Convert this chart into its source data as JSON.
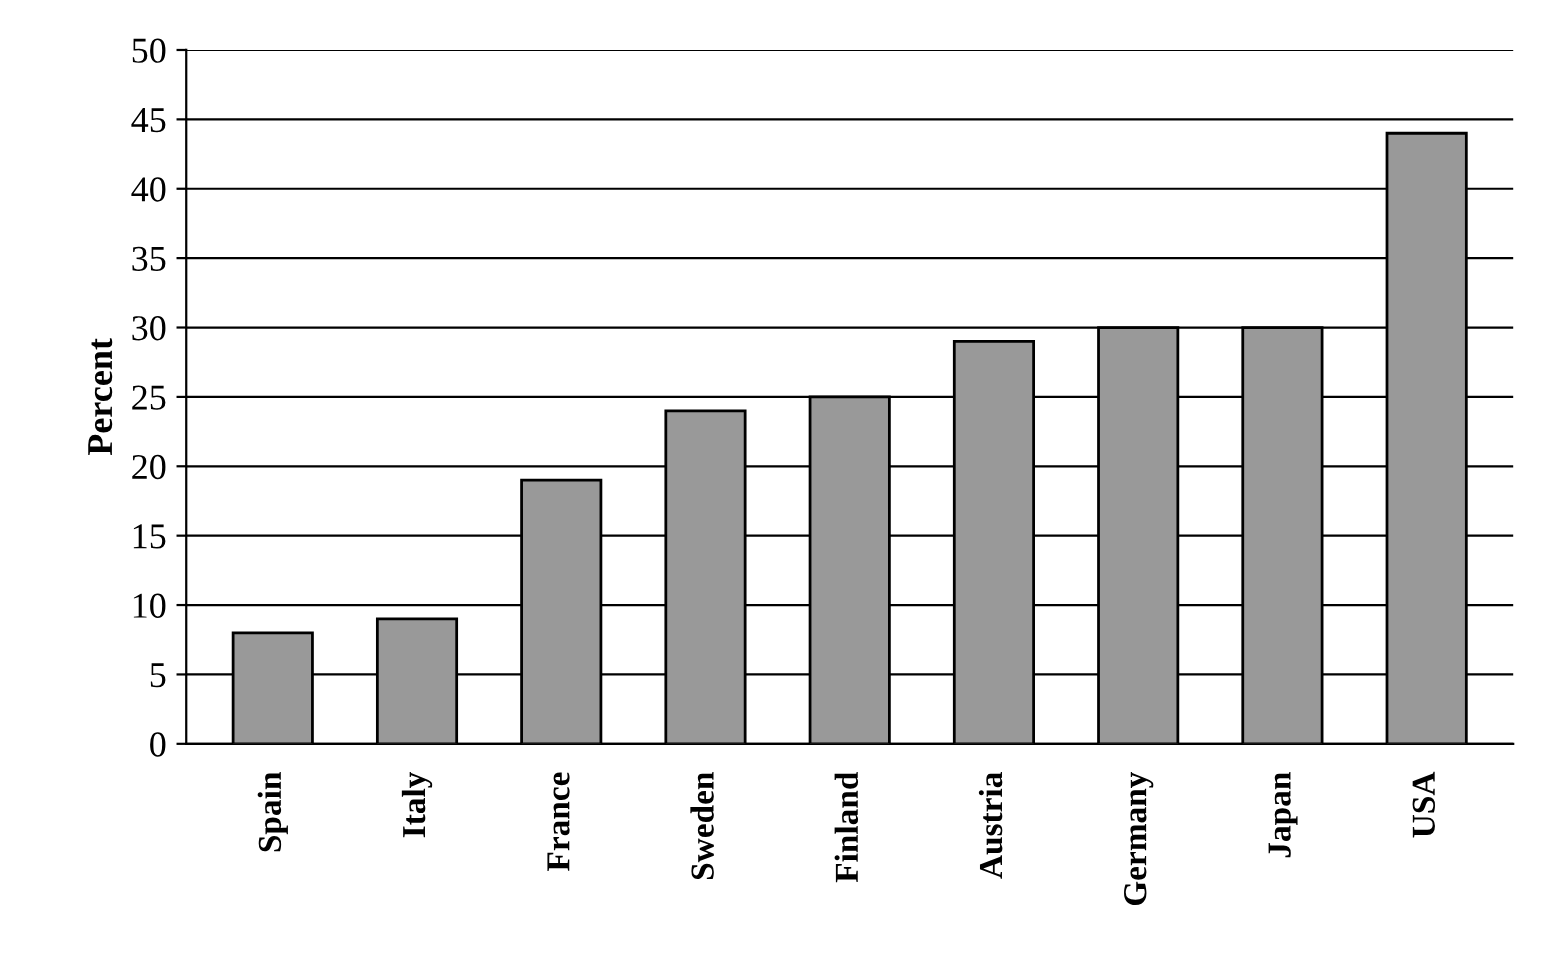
{
  "chart_data": {
    "type": "bar",
    "ylabel": "Percent",
    "categories": [
      "Spain",
      "Italy",
      "France",
      "Sweden",
      "Finland",
      "Austria",
      "Germany",
      "Japan",
      "USA"
    ],
    "values": [
      8,
      9,
      19,
      24,
      25,
      29,
      30,
      30,
      44
    ],
    "color": "#999999",
    "ylim": [
      0,
      50
    ],
    "yticks": [
      0,
      5,
      10,
      15,
      20,
      25,
      30,
      35,
      40,
      45,
      50
    ],
    "grid": "y"
  }
}
